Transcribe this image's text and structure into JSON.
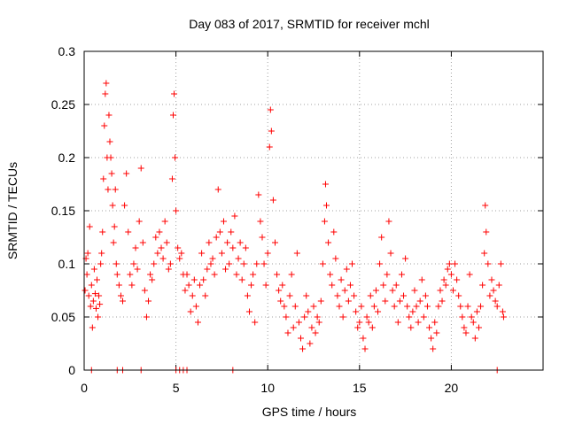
{
  "chart_data": {
    "type": "scatter",
    "title": "Day 083 of 2017, SRMTID for receiver mchl",
    "xlabel": "GPS time / hours",
    "ylabel": "SRMTID / TECUs",
    "xlim": [
      0,
      25
    ],
    "ylim": [
      0,
      0.3
    ],
    "xticks": [
      0,
      5,
      10,
      15,
      20
    ],
    "xtick_labels": [
      "0",
      "5",
      "10",
      "15",
      "20"
    ],
    "yticks": [
      0,
      0.05,
      0.1,
      0.15,
      0.2,
      0.25,
      0.3
    ],
    "ytick_labels": [
      "0",
      "0.05",
      "0.1",
      "0.15",
      "0.2",
      "0.25",
      "0.3"
    ],
    "grid": true,
    "series": [
      {
        "name": "SRMTID",
        "color": "#ff0000",
        "marker": "plus",
        "points": [
          [
            0.05,
            0.075
          ],
          [
            0.1,
            0.105
          ],
          [
            0.15,
            0.09
          ],
          [
            0.2,
            0.11
          ],
          [
            0.25,
            0.07
          ],
          [
            0.3,
            0.135
          ],
          [
            0.35,
            0.06
          ],
          [
            0.4,
            0.08
          ],
          [
            0.45,
            0.04
          ],
          [
            0.5,
            0.065
          ],
          [
            0.55,
            0.095
          ],
          [
            0.6,
            0.072
          ],
          [
            0.65,
            0.058
          ],
          [
            0.7,
            0.085
          ],
          [
            0.75,
            0.05
          ],
          [
            0.8,
            0.07
          ],
          [
            0.85,
            0.062
          ],
          [
            0.9,
            0.1
          ],
          [
            0.95,
            0.11
          ],
          [
            1.0,
            0.13
          ],
          [
            1.05,
            0.18
          ],
          [
            1.1,
            0.23
          ],
          [
            1.15,
            0.26
          ],
          [
            1.2,
            0.27
          ],
          [
            1.25,
            0.2
          ],
          [
            1.3,
            0.17
          ],
          [
            1.35,
            0.24
          ],
          [
            1.4,
            0.215
          ],
          [
            1.45,
            0.2
          ],
          [
            1.5,
            0.185
          ],
          [
            1.55,
            0.155
          ],
          [
            1.6,
            0.12
          ],
          [
            1.65,
            0.135
          ],
          [
            1.7,
            0.17
          ],
          [
            1.75,
            0.1
          ],
          [
            1.8,
            0.09
          ],
          [
            1.9,
            0.08
          ],
          [
            2.0,
            0.07
          ],
          [
            2.1,
            0.065
          ],
          [
            2.2,
            0.155
          ],
          [
            2.3,
            0.185
          ],
          [
            2.4,
            0.13
          ],
          [
            2.5,
            0.09
          ],
          [
            2.6,
            0.08
          ],
          [
            2.7,
            0.1
          ],
          [
            2.8,
            0.115
          ],
          [
            2.9,
            0.095
          ],
          [
            3.0,
            0.14
          ],
          [
            3.1,
            0.19
          ],
          [
            3.2,
            0.12
          ],
          [
            3.3,
            0.075
          ],
          [
            3.4,
            0.05
          ],
          [
            3.5,
            0.065
          ],
          [
            3.6,
            0.09
          ],
          [
            3.7,
            0.085
          ],
          [
            3.8,
            0.1
          ],
          [
            3.9,
            0.125
          ],
          [
            4.0,
            0.11
          ],
          [
            4.1,
            0.13
          ],
          [
            4.2,
            0.115
          ],
          [
            4.3,
            0.105
          ],
          [
            4.4,
            0.14
          ],
          [
            4.5,
            0.12
          ],
          [
            4.6,
            0.095
          ],
          [
            4.7,
            0.1
          ],
          [
            4.8,
            0.18
          ],
          [
            4.85,
            0.24
          ],
          [
            4.9,
            0.26
          ],
          [
            4.95,
            0.2
          ],
          [
            5.0,
            0.15
          ],
          [
            5.1,
            0.115
          ],
          [
            5.2,
            0.105
          ],
          [
            5.3,
            0.11
          ],
          [
            5.4,
            0.09
          ],
          [
            5.5,
            0.075
          ],
          [
            5.6,
            0.09
          ],
          [
            5.7,
            0.08
          ],
          [
            5.8,
            0.055
          ],
          [
            5.9,
            0.07
          ],
          [
            6.0,
            0.085
          ],
          [
            6.1,
            0.06
          ],
          [
            6.2,
            0.045
          ],
          [
            6.3,
            0.08
          ],
          [
            6.4,
            0.11
          ],
          [
            6.5,
            0.085
          ],
          [
            6.6,
            0.07
          ],
          [
            6.7,
            0.095
          ],
          [
            6.8,
            0.12
          ],
          [
            6.9,
            0.1
          ],
          [
            7.0,
            0.105
          ],
          [
            7.1,
            0.09
          ],
          [
            7.2,
            0.125
          ],
          [
            7.3,
            0.17
          ],
          [
            7.4,
            0.13
          ],
          [
            7.5,
            0.11
          ],
          [
            7.6,
            0.14
          ],
          [
            7.7,
            0.095
          ],
          [
            7.8,
            0.12
          ],
          [
            7.9,
            0.1
          ],
          [
            8.0,
            0.13
          ],
          [
            8.1,
            0.115
          ],
          [
            8.2,
            0.145
          ],
          [
            8.3,
            0.09
          ],
          [
            8.4,
            0.105
          ],
          [
            8.5,
            0.12
          ],
          [
            8.6,
            0.085
          ],
          [
            8.7,
            0.1
          ],
          [
            8.8,
            0.115
          ],
          [
            8.9,
            0.07
          ],
          [
            9.0,
            0.055
          ],
          [
            9.1,
            0.08
          ],
          [
            9.2,
            0.09
          ],
          [
            9.3,
            0.045
          ],
          [
            9.4,
            0.1
          ],
          [
            9.5,
            0.165
          ],
          [
            9.6,
            0.14
          ],
          [
            9.7,
            0.125
          ],
          [
            9.8,
            0.1
          ],
          [
            9.9,
            0.08
          ],
          [
            10.0,
            0.11
          ],
          [
            10.1,
            0.21
          ],
          [
            10.15,
            0.245
          ],
          [
            10.2,
            0.225
          ],
          [
            10.3,
            0.16
          ],
          [
            10.4,
            0.12
          ],
          [
            10.5,
            0.09
          ],
          [
            10.6,
            0.075
          ],
          [
            10.7,
            0.065
          ],
          [
            10.8,
            0.08
          ],
          [
            10.9,
            0.06
          ],
          [
            11.0,
            0.05
          ],
          [
            11.1,
            0.035
          ],
          [
            11.2,
            0.07
          ],
          [
            11.3,
            0.09
          ],
          [
            11.4,
            0.04
          ],
          [
            11.5,
            0.06
          ],
          [
            11.6,
            0.11
          ],
          [
            11.7,
            0.045
          ],
          [
            11.8,
            0.03
          ],
          [
            11.9,
            0.02
          ],
          [
            12.0,
            0.05
          ],
          [
            12.1,
            0.07
          ],
          [
            12.2,
            0.055
          ],
          [
            12.3,
            0.025
          ],
          [
            12.4,
            0.04
          ],
          [
            12.5,
            0.06
          ],
          [
            12.6,
            0.035
          ],
          [
            12.7,
            0.05
          ],
          [
            12.8,
            0.045
          ],
          [
            12.9,
            0.065
          ],
          [
            13.0,
            0.1
          ],
          [
            13.1,
            0.14
          ],
          [
            13.15,
            0.175
          ],
          [
            13.2,
            0.155
          ],
          [
            13.3,
            0.12
          ],
          [
            13.4,
            0.09
          ],
          [
            13.5,
            0.08
          ],
          [
            13.6,
            0.13
          ],
          [
            13.7,
            0.105
          ],
          [
            13.8,
            0.07
          ],
          [
            13.9,
            0.06
          ],
          [
            14.0,
            0.085
          ],
          [
            14.1,
            0.05
          ],
          [
            14.2,
            0.075
          ],
          [
            14.3,
            0.095
          ],
          [
            14.4,
            0.065
          ],
          [
            14.5,
            0.08
          ],
          [
            14.6,
            0.1
          ],
          [
            14.7,
            0.07
          ],
          [
            14.8,
            0.055
          ],
          [
            14.9,
            0.04
          ],
          [
            15.0,
            0.045
          ],
          [
            15.1,
            0.06
          ],
          [
            15.2,
            0.03
          ],
          [
            15.3,
            0.02
          ],
          [
            15.4,
            0.05
          ],
          [
            15.5,
            0.045
          ],
          [
            15.6,
            0.07
          ],
          [
            15.7,
            0.04
          ],
          [
            15.8,
            0.06
          ],
          [
            15.9,
            0.075
          ],
          [
            16.0,
            0.055
          ],
          [
            16.1,
            0.1
          ],
          [
            16.2,
            0.125
          ],
          [
            16.3,
            0.08
          ],
          [
            16.4,
            0.065
          ],
          [
            16.5,
            0.09
          ],
          [
            16.6,
            0.14
          ],
          [
            16.7,
            0.11
          ],
          [
            16.8,
            0.075
          ],
          [
            16.9,
            0.06
          ],
          [
            17.0,
            0.08
          ],
          [
            17.1,
            0.045
          ],
          [
            17.2,
            0.065
          ],
          [
            17.3,
            0.09
          ],
          [
            17.4,
            0.07
          ],
          [
            17.5,
            0.105
          ],
          [
            17.6,
            0.06
          ],
          [
            17.7,
            0.05
          ],
          [
            17.8,
            0.04
          ],
          [
            17.9,
            0.055
          ],
          [
            18.0,
            0.075
          ],
          [
            18.1,
            0.06
          ],
          [
            18.2,
            0.045
          ],
          [
            18.3,
            0.065
          ],
          [
            18.4,
            0.085
          ],
          [
            18.5,
            0.05
          ],
          [
            18.6,
            0.07
          ],
          [
            18.7,
            0.06
          ],
          [
            18.8,
            0.04
          ],
          [
            18.9,
            0.03
          ],
          [
            19.0,
            0.02
          ],
          [
            19.1,
            0.045
          ],
          [
            19.2,
            0.035
          ],
          [
            19.3,
            0.06
          ],
          [
            19.4,
            0.075
          ],
          [
            19.5,
            0.065
          ],
          [
            19.6,
            0.085
          ],
          [
            19.7,
            0.08
          ],
          [
            19.8,
            0.095
          ],
          [
            19.9,
            0.1
          ],
          [
            20.0,
            0.09
          ],
          [
            20.1,
            0.075
          ],
          [
            20.2,
            0.1
          ],
          [
            20.3,
            0.085
          ],
          [
            20.4,
            0.07
          ],
          [
            20.5,
            0.06
          ],
          [
            20.6,
            0.05
          ],
          [
            20.7,
            0.04
          ],
          [
            20.8,
            0.035
          ],
          [
            20.9,
            0.06
          ],
          [
            21.0,
            0.09
          ],
          [
            21.1,
            0.05
          ],
          [
            21.2,
            0.045
          ],
          [
            21.3,
            0.03
          ],
          [
            21.4,
            0.055
          ],
          [
            21.5,
            0.04
          ],
          [
            21.6,
            0.06
          ],
          [
            21.7,
            0.08
          ],
          [
            21.8,
            0.11
          ],
          [
            21.85,
            0.155
          ],
          [
            21.9,
            0.13
          ],
          [
            22.0,
            0.1
          ],
          [
            22.1,
            0.07
          ],
          [
            22.2,
            0.085
          ],
          [
            22.3,
            0.075
          ],
          [
            22.4,
            0.065
          ],
          [
            22.5,
            0.06
          ],
          [
            22.6,
            0.08
          ],
          [
            22.7,
            0.1
          ],
          [
            22.8,
            0.055
          ],
          [
            22.85,
            0.05
          ],
          [
            0.4,
            0.0
          ],
          [
            1.8,
            0.0
          ],
          [
            2.1,
            0.0
          ],
          [
            3.1,
            0.0
          ],
          [
            5.0,
            0.0
          ],
          [
            5.2,
            0.0
          ],
          [
            5.4,
            0.0
          ],
          [
            5.6,
            0.0
          ],
          [
            8.1,
            0.0
          ],
          [
            22.5,
            0.0
          ]
        ]
      }
    ]
  }
}
